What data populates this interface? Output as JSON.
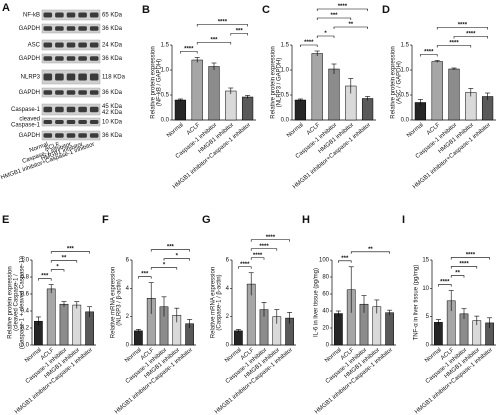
{
  "blot": {
    "label": "A",
    "rows": [
      {
        "name": [
          "NF-kB"
        ],
        "kda": [
          "65 KDa"
        ]
      },
      {
        "name": [
          "GAPDH"
        ],
        "kda": [
          "36 KDa"
        ]
      },
      {
        "name": [
          "ASC"
        ],
        "kda": [
          "24 KDa"
        ]
      },
      {
        "name": [
          "GAPDH"
        ],
        "kda": [
          "36 KDa"
        ]
      },
      {
        "name": [
          "NLRP3"
        ],
        "kda": [
          "118 KDa"
        ]
      },
      {
        "name": [
          "GAPDH"
        ],
        "kda": [
          "36 KDa"
        ]
      },
      {
        "name": [
          "Caspase-1"
        ],
        "kda": [
          "45 KDa",
          "42 KDa"
        ]
      },
      {
        "name": [
          "cleaved",
          "Caspase-1"
        ],
        "kda": [
          "10 KDa"
        ]
      },
      {
        "name": [
          "GAPDH"
        ],
        "kda": [
          "36 KDa"
        ]
      }
    ],
    "lanes": [
      "Normal",
      "ACLF",
      "Caspase-1 inhibitor",
      "HMGB1 inhibitor",
      "HMGB1 inhibitor+Caspase-1 inhibitor"
    ]
  },
  "chart_data": [
    {
      "type": "bar",
      "label": "B",
      "ylabel": [
        "Relative protein expression",
        "(NF-kB / GAPDH)"
      ],
      "categories": [
        "Normal",
        "ACLF",
        "Caspase-1 inhibitor",
        "HMGB1 inhibitor",
        "HMGB1 inhibitor+Caspase-1 inhibitor"
      ],
      "values": [
        0.4,
        1.2,
        1.07,
        0.58,
        0.46
      ],
      "errors": [
        0.02,
        0.05,
        0.07,
        0.06,
        0.03
      ],
      "colors": [
        "#262626",
        "#a6a6a6",
        "#8c8c8c",
        "#d9d9d9",
        "#595959"
      ],
      "ylim": [
        0,
        1.5
      ],
      "yticks": [
        {
          "value": 0,
          "label": "0.0"
        },
        0.5,
        {
          "value": 1,
          "label": "1.0"
        },
        1.5
      ],
      "annotations": [
        {
          "text": "****",
          "pair": [
            0,
            1
          ]
        },
        {
          "text": "***",
          "pair": [
            1,
            3
          ]
        },
        {
          "text": "***",
          "pair": [
            3,
            4
          ]
        },
        {
          "text": "****",
          "pair": [
            1,
            4
          ]
        }
      ]
    },
    {
      "type": "bar",
      "label": "C",
      "ylabel": [
        "Relative protein expression",
        "(NLRP3 / GAPDH)"
      ],
      "categories": [
        "Normal",
        "ACLF",
        "Caspase-1 inhibitor",
        "HMGB1 inhibitor",
        "HMGB1 inhibitor+Caspase-1 inhibitor"
      ],
      "values": [
        0.4,
        1.33,
        1.02,
        0.68,
        0.43
      ],
      "errors": [
        0.02,
        0.05,
        0.1,
        0.15,
        0.04
      ],
      "colors": [
        "#262626",
        "#a6a6a6",
        "#8c8c8c",
        "#d9d9d9",
        "#595959"
      ],
      "ylim": [
        0,
        1.5
      ],
      "yticks": [
        {
          "value": 0,
          "label": "0.0"
        },
        0.5,
        {
          "value": 1,
          "label": "1.0"
        },
        1.5
      ],
      "annotations": [
        {
          "text": "****",
          "pair": [
            0,
            1
          ]
        },
        {
          "text": "*",
          "pair": [
            1,
            2
          ]
        },
        {
          "text": "**",
          "pair": [
            2,
            4
          ]
        },
        {
          "text": "***",
          "pair": [
            1,
            3
          ]
        },
        {
          "text": "****",
          "pair": [
            1,
            4
          ]
        }
      ]
    },
    {
      "type": "bar",
      "label": "D",
      "ylabel": [
        "Relative protein expression",
        "(ASC / GAPDH)"
      ],
      "categories": [
        "Normal",
        "ACLF",
        "Caspase-1 inhibitor",
        "HMGB1 inhibitor",
        "HMGB1 inhibitor+Caspase-1 inhibitor"
      ],
      "values": [
        0.35,
        1.17,
        1.02,
        0.55,
        0.47
      ],
      "errors": [
        0.06,
        0.02,
        0.02,
        0.08,
        0.07
      ],
      "colors": [
        "#262626",
        "#a6a6a6",
        "#8c8c8c",
        "#d9d9d9",
        "#595959"
      ],
      "ylim": [
        0,
        1.5
      ],
      "yticks": [
        {
          "value": 0,
          "label": "0.0"
        },
        0.5,
        {
          "value": 1,
          "label": "1.0"
        },
        1.5
      ],
      "annotations": [
        {
          "text": "****",
          "pair": [
            0,
            1
          ]
        },
        {
          "text": "****",
          "pair": [
            1,
            3
          ]
        },
        {
          "text": "****",
          "pair": [
            2,
            4
          ]
        },
        {
          "text": "****",
          "pair": [
            1,
            4
          ]
        }
      ]
    },
    {
      "type": "bar",
      "label": "E",
      "ylabel": [
        "Relative protein expression",
        "(cleaved Caspase-1 /",
        "(Caspase-1 + cleaved Caspase-1))"
      ],
      "categories": [
        "Normal",
        "ACLF",
        "Caspase-1 inhibitor",
        "HMGB1 inhibitor",
        "HMGB1 inhibitor+Caspase-1 inhibitor"
      ],
      "values": [
        0.28,
        0.66,
        0.48,
        0.47,
        0.39
      ],
      "errors": [
        0.05,
        0.05,
        0.03,
        0.04,
        0.06
      ],
      "colors": [
        "#262626",
        "#a6a6a6",
        "#8c8c8c",
        "#d9d9d9",
        "#595959"
      ],
      "ylim": [
        0,
        1
      ],
      "yticks": [
        {
          "value": 0,
          "label": "0.0"
        },
        0.2,
        0.4,
        0.6,
        0.8,
        {
          "value": 1,
          "label": "1.0"
        }
      ],
      "annotations": [
        {
          "text": "***",
          "pair": [
            0,
            1
          ]
        },
        {
          "text": "*",
          "pair": [
            1,
            2
          ]
        },
        {
          "text": "**",
          "pair": [
            1,
            3
          ]
        },
        {
          "text": "***",
          "pair": [
            1,
            4
          ]
        }
      ]
    },
    {
      "type": "bar",
      "label": "F",
      "ylabel": [
        "Relative mRNA expression",
        "(NLRP3 / β-actin)"
      ],
      "categories": [
        "Normal",
        "ACLF",
        "Caspase-1 inhibitor",
        "HMGB1 inhibitor",
        "HMGB1 inhibitor+Caspase-1 inhibitor"
      ],
      "values": [
        1.0,
        3.3,
        2.7,
        2.1,
        1.5
      ],
      "errors": [
        0.1,
        1.1,
        0.7,
        0.5,
        0.3
      ],
      "colors": [
        "#262626",
        "#a6a6a6",
        "#8c8c8c",
        "#d9d9d9",
        "#595959"
      ],
      "ylim": [
        0,
        6
      ],
      "yticks": [
        0,
        2,
        4,
        6
      ],
      "annotations": [
        {
          "text": "***",
          "pair": [
            0,
            1
          ]
        },
        {
          "text": "*",
          "pair": [
            1,
            3
          ]
        },
        {
          "text": "*",
          "pair": [
            2,
            4
          ]
        },
        {
          "text": "***",
          "pair": [
            1,
            4
          ]
        }
      ]
    },
    {
      "type": "bar",
      "label": "G",
      "ylabel": [
        "Relative mRNA expression",
        "(Caspase-1 / β-actin)"
      ],
      "categories": [
        "Normal",
        "ACLF",
        "Caspase-1 inhibitor",
        "HMGB1 inhibitor",
        "HMGB1 inhibitor+Caspase-1 inhibitor"
      ],
      "values": [
        1.0,
        4.3,
        2.5,
        2.0,
        1.9
      ],
      "errors": [
        0.1,
        0.8,
        0.5,
        0.5,
        0.4
      ],
      "colors": [
        "#262626",
        "#a6a6a6",
        "#8c8c8c",
        "#d9d9d9",
        "#595959"
      ],
      "ylim": [
        0,
        6
      ],
      "yticks": [
        0,
        2,
        4,
        6
      ],
      "annotations": [
        {
          "text": "****",
          "pair": [
            0,
            1
          ]
        },
        {
          "text": "****",
          "pair": [
            1,
            2
          ]
        },
        {
          "text": "****",
          "pair": [
            1,
            3
          ]
        },
        {
          "text": "****",
          "pair": [
            1,
            4
          ]
        }
      ]
    },
    {
      "type": "bar",
      "label": "H",
      "ylabel": [
        "IL-6 in liver tissue (pg/mg)"
      ],
      "categories": [
        "Normal",
        "ACLF",
        "Caspase-1 inhibitor",
        "HMGB1 inhibitor",
        "HMGB1 inhibitor+Caspase-1 inhibitor"
      ],
      "values": [
        37,
        65,
        48,
        45,
        38
      ],
      "errors": [
        3,
        27,
        10,
        8,
        3
      ],
      "colors": [
        "#262626",
        "#a6a6a6",
        "#8c8c8c",
        "#d9d9d9",
        "#595959"
      ],
      "ylim": [
        0,
        100
      ],
      "yticks": [
        0,
        20,
        40,
        60,
        80,
        100
      ],
      "annotations": [
        {
          "text": "***",
          "pair": [
            0,
            1
          ]
        },
        {
          "text": "**",
          "pair": [
            1,
            4
          ]
        }
      ]
    },
    {
      "type": "bar",
      "label": "I",
      "ylabel": [
        "TNF-α in liver tissue (pg/mg)"
      ],
      "categories": [
        "Normal",
        "ACLF",
        "Caspase-1 inhibitor",
        "HMGB1 inhibitor",
        "HMGB1 inhibitor+Caspase-1 inhibitor"
      ],
      "values": [
        4,
        7.8,
        5.5,
        4.3,
        3.9
      ],
      "errors": [
        0.5,
        1.8,
        0.9,
        0.8,
        0.9
      ],
      "colors": [
        "#262626",
        "#a6a6a6",
        "#8c8c8c",
        "#d9d9d9",
        "#595959"
      ],
      "ylim": [
        0,
        15
      ],
      "yticks": [
        0,
        5,
        10,
        15
      ],
      "annotations": [
        {
          "text": "****",
          "pair": [
            0,
            1
          ]
        },
        {
          "text": "**",
          "pair": [
            1,
            2
          ]
        },
        {
          "text": "****",
          "pair": [
            1,
            3
          ]
        },
        {
          "text": "****",
          "pair": [
            1,
            4
          ]
        }
      ]
    }
  ]
}
